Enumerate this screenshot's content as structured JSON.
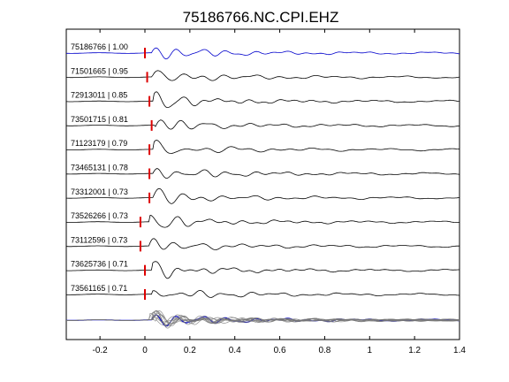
{
  "chart_data": {
    "type": "line",
    "title": "75186766.NC.CPI.EHZ",
    "xlabel": "",
    "ylabel": "",
    "xlim": [
      -0.35,
      1.4
    ],
    "x_ticks": [
      "-0.2",
      "0",
      "0.2",
      "0.4",
      "0.6",
      "0.8",
      "1",
      "1.2",
      "1.4"
    ],
    "x_tick_values": [
      -0.2,
      0,
      0.2,
      0.4,
      0.6,
      0.8,
      1.0,
      1.2,
      1.4
    ],
    "grid": false,
    "reference_color": "#0000cc",
    "trace_color": "#000000",
    "stack_color": "#777777",
    "pick_color": "#dd0000",
    "series": [
      {
        "label": "75186766 | 1.00",
        "pick_time": 0.0,
        "reference": true
      },
      {
        "label": "71501665 | 0.95",
        "pick_time": 0.01
      },
      {
        "label": "72913011 | 0.85",
        "pick_time": 0.02
      },
      {
        "label": "73501715 | 0.81",
        "pick_time": 0.03
      },
      {
        "label": "71123179 | 0.79",
        "pick_time": 0.02
      },
      {
        "label": "73465131 | 0.78",
        "pick_time": 0.02
      },
      {
        "label": "73312001 | 0.73",
        "pick_time": 0.02
      },
      {
        "label": "73526266 | 0.73",
        "pick_time": -0.02
      },
      {
        "label": "73112596 | 0.73",
        "pick_time": -0.02
      },
      {
        "label": "73625736 | 0.71",
        "pick_time": 0.0
      },
      {
        "label": "73561165 | 0.71",
        "pick_time": 0.0
      }
    ]
  }
}
